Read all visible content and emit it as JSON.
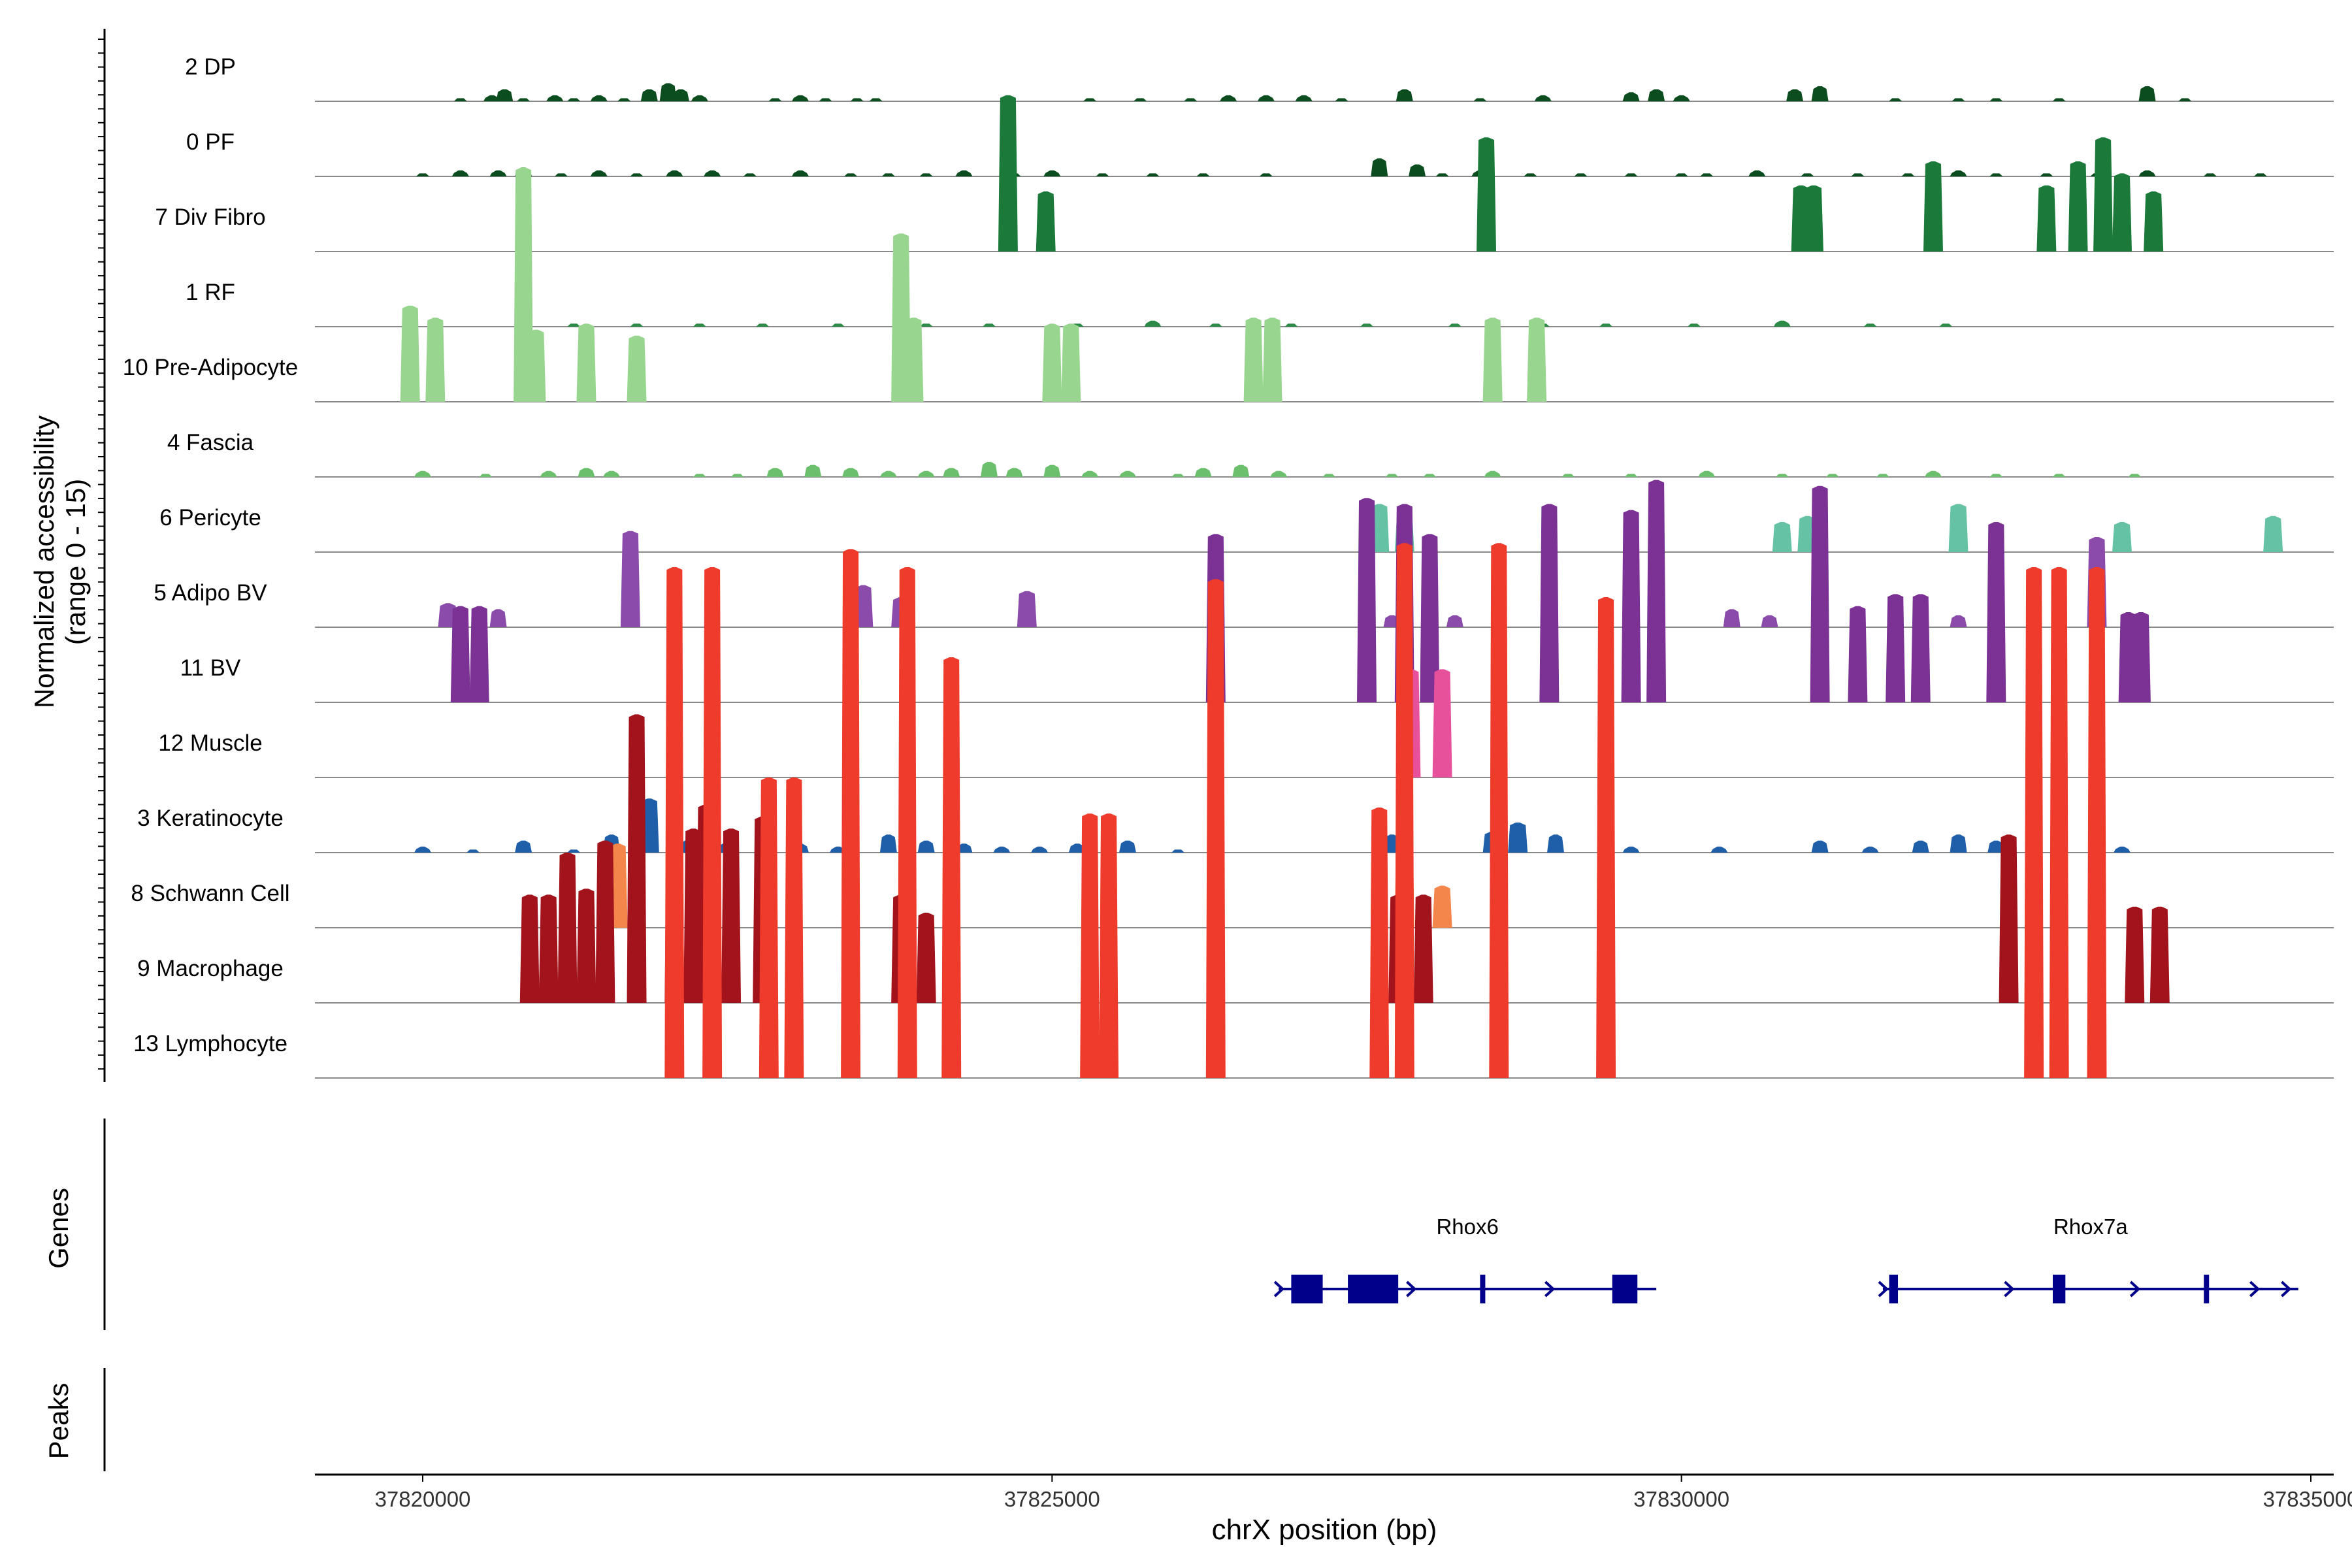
{
  "chart_data": {
    "type": "area",
    "title": "",
    "xlabel": "chrX position (bp)",
    "ylabel_line1": "Normalized accessibility",
    "ylabel_line2": "(range 0 - 15)",
    "y_range": [
      0,
      15
    ],
    "x_range": [
      37819100,
      37835500
    ],
    "x_ticks": [
      37820000,
      37825000,
      37830000,
      37835000
    ],
    "x_tick_labels": [
      "37820000",
      "37825000",
      "37830000",
      "37835000"
    ],
    "panel_labels": {
      "genes": "Genes",
      "peaks": "Peaks"
    },
    "tracks": [
      {
        "name": "2 DP",
        "color": "#0b4d1e",
        "peaks": [
          [
            37820300,
            0.05
          ],
          [
            37820550,
            0.1
          ],
          [
            37820650,
            0.2
          ],
          [
            37820800,
            0.05
          ],
          [
            37821050,
            0.1
          ],
          [
            37821200,
            0.05
          ],
          [
            37821400,
            0.1
          ],
          [
            37821600,
            0.05
          ],
          [
            37821800,
            0.2
          ],
          [
            37821950,
            0.3
          ],
          [
            37822050,
            0.2
          ],
          [
            37822200,
            0.1
          ],
          [
            37822800,
            0.05
          ],
          [
            37823000,
            0.1
          ],
          [
            37823200,
            0.05
          ],
          [
            37823450,
            0.05
          ],
          [
            37823600,
            0.05
          ],
          [
            37825300,
            0.05
          ],
          [
            37825700,
            0.05
          ],
          [
            37826100,
            0.05
          ],
          [
            37826400,
            0.1
          ],
          [
            37826700,
            0.1
          ],
          [
            37827000,
            0.1
          ],
          [
            37827300,
            0.05
          ],
          [
            37827800,
            0.2
          ],
          [
            37828400,
            0.05
          ],
          [
            37828900,
            0.1
          ],
          [
            37829600,
            0.15
          ],
          [
            37829800,
            0.2
          ],
          [
            37830000,
            0.1
          ],
          [
            37830900,
            0.2
          ],
          [
            37831100,
            0.25
          ],
          [
            37831700,
            0.05
          ],
          [
            37832200,
            0.05
          ],
          [
            37832500,
            0.05
          ],
          [
            37833000,
            0.05
          ],
          [
            37833700,
            0.25
          ],
          [
            37834000,
            0.05
          ]
        ]
      },
      {
        "name": "0 PF",
        "color": "#0b4d1e",
        "peaks": [
          [
            37820000,
            0.05
          ],
          [
            37820300,
            0.1
          ],
          [
            37820600,
            0.1
          ],
          [
            37820800,
            0.15
          ],
          [
            37821100,
            0.05
          ],
          [
            37821400,
            0.1
          ],
          [
            37821700,
            0.05
          ],
          [
            37822000,
            0.1
          ],
          [
            37822300,
            0.1
          ],
          [
            37822600,
            0.05
          ],
          [
            37823000,
            0.1
          ],
          [
            37823400,
            0.05
          ],
          [
            37823700,
            0.05
          ],
          [
            37824000,
            0.05
          ],
          [
            37824300,
            0.1
          ],
          [
            37824700,
            0.05
          ],
          [
            37825000,
            0.1
          ],
          [
            37825400,
            0.05
          ],
          [
            37825800,
            0.05
          ],
          [
            37826200,
            0.05
          ],
          [
            37826700,
            0.05
          ],
          [
            37827600,
            0.3
          ],
          [
            37827900,
            0.2
          ],
          [
            37828100,
            0.05
          ],
          [
            37828400,
            0.1
          ],
          [
            37828800,
            0.05
          ],
          [
            37829200,
            0.05
          ],
          [
            37829600,
            0.05
          ],
          [
            37830000,
            0.05
          ],
          [
            37830200,
            0.05
          ],
          [
            37830600,
            0.1
          ],
          [
            37831000,
            0.05
          ],
          [
            37831400,
            0.05
          ],
          [
            37831800,
            0.05
          ],
          [
            37832200,
            0.1
          ],
          [
            37832500,
            0.05
          ],
          [
            37832900,
            0.05
          ],
          [
            37833300,
            0.05
          ],
          [
            37833700,
            0.1
          ],
          [
            37834200,
            0.05
          ],
          [
            37834600,
            0.05
          ]
        ]
      },
      {
        "name": "7 Div Fibro",
        "color": "#1b7a3a",
        "peaks": [
          [
            37824650,
            2.6
          ],
          [
            37824950,
            1.0
          ],
          [
            37828450,
            1.9
          ],
          [
            37830950,
            1.1
          ],
          [
            37831050,
            1.1
          ],
          [
            37832000,
            1.5
          ],
          [
            37832900,
            1.1
          ],
          [
            37833150,
            1.5
          ],
          [
            37833350,
            1.9
          ],
          [
            37833500,
            1.3
          ],
          [
            37833750,
            1.0
          ]
        ]
      },
      {
        "name": "1 RF",
        "color": "#2a8a46",
        "peaks": [
          [
            37820800,
            0.1
          ],
          [
            37821200,
            0.05
          ],
          [
            37821700,
            0.05
          ],
          [
            37822200,
            0.05
          ],
          [
            37822700,
            0.05
          ],
          [
            37823300,
            0.05
          ],
          [
            37824000,
            0.05
          ],
          [
            37824500,
            0.05
          ],
          [
            37825200,
            0.05
          ],
          [
            37825800,
            0.1
          ],
          [
            37826300,
            0.05
          ],
          [
            37826900,
            0.05
          ],
          [
            37827500,
            0.05
          ],
          [
            37828200,
            0.05
          ],
          [
            37828900,
            0.05
          ],
          [
            37829400,
            0.05
          ],
          [
            37830100,
            0.05
          ],
          [
            37830800,
            0.1
          ],
          [
            37831500,
            0.05
          ],
          [
            37832100,
            0.05
          ]
        ]
      },
      {
        "name": "10 Pre-Adipocyte",
        "color": "#98d58f",
        "peaks": [
          [
            37819900,
            1.6
          ],
          [
            37820100,
            1.4
          ],
          [
            37820800,
            3.9
          ],
          [
            37820900,
            1.2
          ],
          [
            37821300,
            1.3
          ],
          [
            37821700,
            1.1
          ],
          [
            37823800,
            2.8
          ],
          [
            37823900,
            1.4
          ],
          [
            37825000,
            1.3
          ],
          [
            37825150,
            1.3
          ],
          [
            37826600,
            1.4
          ],
          [
            37826750,
            1.4
          ],
          [
            37828500,
            1.4
          ],
          [
            37828850,
            1.4
          ]
        ]
      },
      {
        "name": "4 Fascia",
        "color": "#6bbf6d",
        "peaks": [
          [
            37820000,
            0.1
          ],
          [
            37820500,
            0.05
          ],
          [
            37821000,
            0.1
          ],
          [
            37821300,
            0.15
          ],
          [
            37821500,
            0.1
          ],
          [
            37822200,
            0.05
          ],
          [
            37822500,
            0.05
          ],
          [
            37822800,
            0.15
          ],
          [
            37823100,
            0.2
          ],
          [
            37823400,
            0.15
          ],
          [
            37823700,
            0.1
          ],
          [
            37824000,
            0.1
          ],
          [
            37824200,
            0.15
          ],
          [
            37824500,
            0.25
          ],
          [
            37824700,
            0.15
          ],
          [
            37825000,
            0.2
          ],
          [
            37825300,
            0.1
          ],
          [
            37825600,
            0.1
          ],
          [
            37826000,
            0.05
          ],
          [
            37826200,
            0.15
          ],
          [
            37826500,
            0.2
          ],
          [
            37826800,
            0.1
          ],
          [
            37827200,
            0.05
          ],
          [
            37827700,
            0.05
          ],
          [
            37828000,
            0.05
          ],
          [
            37828500,
            0.1
          ],
          [
            37829100,
            0.05
          ],
          [
            37829600,
            0.05
          ],
          [
            37830200,
            0.1
          ],
          [
            37830800,
            0.05
          ],
          [
            37831200,
            0.05
          ],
          [
            37831600,
            0.05
          ],
          [
            37832000,
            0.1
          ],
          [
            37832500,
            0.05
          ],
          [
            37833000,
            0.05
          ],
          [
            37833600,
            0.05
          ]
        ]
      },
      {
        "name": "6 Pericyte",
        "color": "#66c2a5",
        "peaks": [
          [
            37827600,
            0.8
          ],
          [
            37827800,
            0.6
          ],
          [
            37830800,
            0.5
          ],
          [
            37831000,
            0.6
          ],
          [
            37832200,
            0.8
          ],
          [
            37833500,
            0.5
          ],
          [
            37834700,
            0.6
          ]
        ]
      },
      {
        "name": "5 Adipo BV",
        "color": "#8a4bab",
        "peaks": [
          [
            37820200,
            0.4
          ],
          [
            37820600,
            0.3
          ],
          [
            37821650,
            1.6
          ],
          [
            37823500,
            0.7
          ],
          [
            37823800,
            0.5
          ],
          [
            37824800,
            0.6
          ],
          [
            37827700,
            0.2
          ],
          [
            37828200,
            0.2
          ],
          [
            37830400,
            0.3
          ],
          [
            37830700,
            0.2
          ],
          [
            37831700,
            0.2
          ],
          [
            37832200,
            0.2
          ],
          [
            37833300,
            1.5
          ]
        ]
      },
      {
        "name": "11 BV",
        "color": "#7b3294",
        "peaks": [
          [
            37820300,
            1.6
          ],
          [
            37820450,
            1.6
          ],
          [
            37826300,
            2.8
          ],
          [
            37827500,
            3.4
          ],
          [
            37827800,
            3.3
          ],
          [
            37828000,
            2.8
          ],
          [
            37828950,
            3.3
          ],
          [
            37829600,
            3.2
          ],
          [
            37829800,
            3.7
          ],
          [
            37831100,
            3.6
          ],
          [
            37831400,
            1.6
          ],
          [
            37831700,
            1.8
          ],
          [
            37831900,
            1.8
          ],
          [
            37832500,
            3.0
          ],
          [
            37833550,
            1.5
          ],
          [
            37833650,
            1.5
          ]
        ]
      },
      {
        "name": "12 Muscle",
        "color": "#e7509a",
        "peaks": [
          [
            37827850,
            1.8
          ],
          [
            37828100,
            1.8
          ]
        ]
      },
      {
        "name": "3 Keratinocyte",
        "color": "#1f5ea8",
        "peaks": [
          [
            37820000,
            0.1
          ],
          [
            37820400,
            0.05
          ],
          [
            37820800,
            0.2
          ],
          [
            37821200,
            0.05
          ],
          [
            37821500,
            0.3
          ],
          [
            37821800,
            0.9
          ],
          [
            37822100,
            0.2
          ],
          [
            37822400,
            0.15
          ],
          [
            37822700,
            0.1
          ],
          [
            37823000,
            0.15
          ],
          [
            37823300,
            0.1
          ],
          [
            37823700,
            0.3
          ],
          [
            37824000,
            0.2
          ],
          [
            37824300,
            0.15
          ],
          [
            37824600,
            0.1
          ],
          [
            37824900,
            0.1
          ],
          [
            37825200,
            0.15
          ],
          [
            37825600,
            0.2
          ],
          [
            37826000,
            0.05
          ],
          [
            37827700,
            0.3
          ],
          [
            37828500,
            0.35
          ],
          [
            37828700,
            0.5
          ],
          [
            37829000,
            0.3
          ],
          [
            37829600,
            0.1
          ],
          [
            37830300,
            0.1
          ],
          [
            37831100,
            0.2
          ],
          [
            37831500,
            0.1
          ],
          [
            37831900,
            0.2
          ],
          [
            37832200,
            0.3
          ],
          [
            37832500,
            0.2
          ],
          [
            37833000,
            0.1
          ],
          [
            37833500,
            0.1
          ]
        ]
      },
      {
        "name": "8 Schwann Cell",
        "color": "#f4864b",
        "peaks": [
          [
            37821550,
            1.4
          ],
          [
            37827800,
            2.1
          ],
          [
            37828100,
            0.7
          ]
        ]
      },
      {
        "name": "9 Macrophage",
        "color": "#a3131b",
        "peaks": [
          [
            37820850,
            1.8
          ],
          [
            37821000,
            1.8
          ],
          [
            37821150,
            2.5
          ],
          [
            37821300,
            1.9
          ],
          [
            37821450,
            2.7
          ],
          [
            37821700,
            4.8
          ],
          [
            37822000,
            3.4
          ],
          [
            37822150,
            2.9
          ],
          [
            37822250,
            3.3
          ],
          [
            37822450,
            2.9
          ],
          [
            37822700,
            3.1
          ],
          [
            37823800,
            1.8
          ],
          [
            37824000,
            1.5
          ],
          [
            37827750,
            1.8
          ],
          [
            37827950,
            1.8
          ],
          [
            37832600,
            2.8
          ],
          [
            37833600,
            1.6
          ],
          [
            37833800,
            1.6
          ]
        ]
      },
      {
        "name": "13 Lymphocyte",
        "color": "#ef3b2c",
        "peaks": [
          [
            37822000,
            8.5
          ],
          [
            37822300,
            8.5
          ],
          [
            37822750,
            5.0
          ],
          [
            37822950,
            5.0
          ],
          [
            37823400,
            8.8
          ],
          [
            37823850,
            8.5
          ],
          [
            37824200,
            7.0
          ],
          [
            37825300,
            4.4
          ],
          [
            37825450,
            4.4
          ],
          [
            37826300,
            8.3
          ],
          [
            37827600,
            4.5
          ],
          [
            37827800,
            8.9
          ],
          [
            37828550,
            8.9
          ],
          [
            37829400,
            8.0
          ],
          [
            37832800,
            8.5
          ],
          [
            37833000,
            8.5
          ],
          [
            37833300,
            8.5
          ]
        ]
      }
    ],
    "genes": [
      {
        "name": "Rhox6",
        "start": 37826800,
        "end": 37829800,
        "exons": [
          [
            37826900,
            37827150
          ],
          [
            37827350,
            37827750
          ],
          [
            37828400,
            37828430
          ],
          [
            37829450,
            37829650
          ]
        ],
        "arrows": [
          37826800,
          37827850,
          37828950
        ]
      },
      {
        "name": "Rhox7a",
        "start": 37831600,
        "end": 37834900,
        "exons": [
          [
            37831650,
            37831720
          ],
          [
            37832950,
            37833050
          ],
          [
            37834150,
            37834180
          ]
        ],
        "arrows": [
          37831600,
          37832600,
          37833600,
          37834550,
          37834800
        ]
      }
    ]
  }
}
